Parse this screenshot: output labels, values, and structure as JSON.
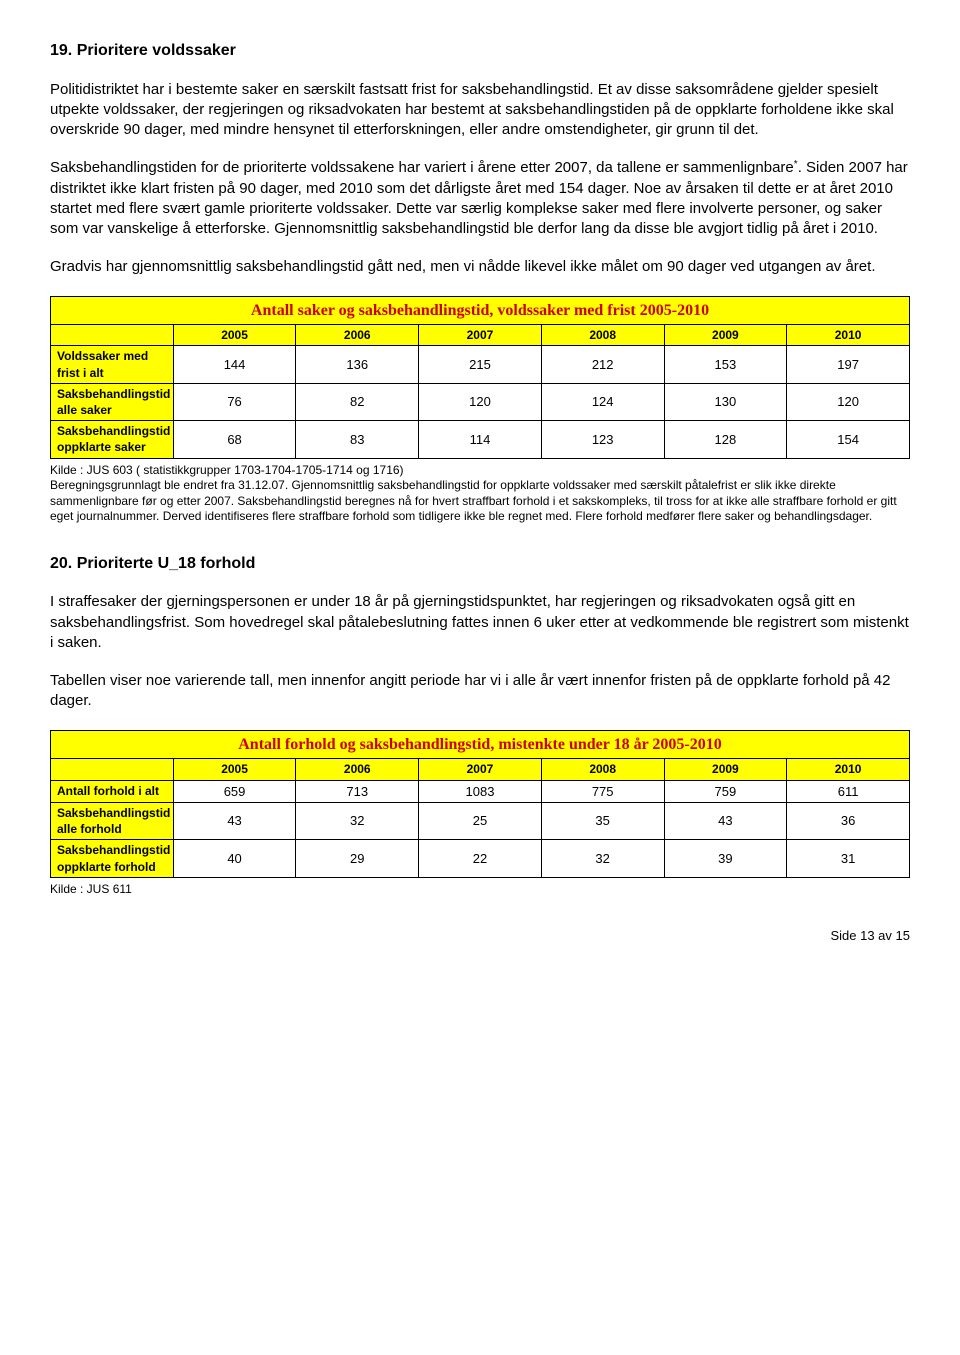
{
  "section19": {
    "heading": "19. Prioritere voldssaker",
    "p1": "Politidistriktet har i bestemte saker en særskilt fastsatt frist for saksbehandlingstid. Et av disse saksområdene gjelder spesielt utpekte voldssaker, der regjeringen og riksadvokaten har bestemt at saksbehandlingstiden på de oppklarte forholdene ikke skal overskride 90 dager, med mindre hensynet til etterforskningen, eller andre omstendigheter, gir grunn til det.",
    "p2a": "Saksbehandlingstiden for de prioriterte voldssakene har variert i årene etter 2007, da tallene er sammenlignbare",
    "p2b": ". Siden 2007 har distriktet ikke klart fristen på 90 dager, med 2010 som det dårligste året med 154 dager. Noe av årsaken til dette er at året 2010 startet med flere svært gamle prioriterte voldssaker. Dette var særlig komplekse saker med flere involverte personer, og saker som var vanskelige å etterforske. Gjennomsnittlig saksbehandlingstid ble derfor lang da disse ble avgjort tidlig på året i 2010.",
    "p3": "Gradvis har gjennomsnittlig saksbehandlingstid gått ned, men vi nådde likevel ikke målet om 90 dager ved utgangen av året."
  },
  "table1": {
    "title": "Antall saker og saksbehandlingstid, voldssaker med frist 2005-2010",
    "years": [
      "2005",
      "2006",
      "2007",
      "2008",
      "2009",
      "2010"
    ],
    "rows": [
      {
        "label": "Voldssaker med frist i alt",
        "values": [
          "144",
          "136",
          "215",
          "212",
          "153",
          "197"
        ]
      },
      {
        "label": "Saksbehandlingstid alle saker",
        "values": [
          "76",
          "82",
          "120",
          "124",
          "130",
          "120"
        ]
      },
      {
        "label": "Saksbehandlingstid oppklarte saker",
        "values": [
          "68",
          "83",
          "114",
          "123",
          "128",
          "154"
        ]
      }
    ],
    "note": "Kilde : JUS 603 ( statistikkgrupper 1703-1704-1705-1714 og 1716)\nBeregningsgrunnlagt ble endret fra 31.12.07. Gjennomsnittlig saksbehandlingstid for oppklarte voldssaker med særskilt påtalefrist er slik ikke direkte sammenlignbare før og etter 2007. Saksbehandlingstid beregnes nå for hvert straffbart forhold i et sakskompleks, til tross for at ikke alle straffbare forhold er gitt eget journalnummer. Derved identifiseres flere straffbare forhold som tidligere ikke ble regnet med. Flere forhold medfører flere saker og behandlingsdager."
  },
  "section20": {
    "heading": "20. Prioriterte U_18 forhold",
    "p1": "I straffesaker der gjerningspersonen er under 18 år på gjerningstidspunktet, har regjeringen og riksadvokaten også gitt en saksbehandlingsfrist. Som hovedregel skal påtalebeslutning fattes innen 6 uker etter at vedkommende ble registrert som mistenkt i saken.",
    "p2": "Tabellen viser noe varierende tall, men innenfor angitt periode har vi i alle år vært innenfor fristen på de oppklarte forhold på 42 dager."
  },
  "table2": {
    "title": "Antall forhold og saksbehandlingstid, mistenkte under 18 år 2005-2010",
    "years": [
      "2005",
      "2006",
      "2007",
      "2008",
      "2009",
      "2010"
    ],
    "rows": [
      {
        "label": "Antall forhold i alt",
        "values": [
          "659",
          "713",
          "1083",
          "775",
          "759",
          "611"
        ]
      },
      {
        "label": "Saksbehandlingstid alle forhold",
        "values": [
          "43",
          "32",
          "25",
          "35",
          "43",
          "36"
        ]
      },
      {
        "label": "Saksbehandlingstid oppklarte forhold",
        "values": [
          "40",
          "29",
          "22",
          "32",
          "39",
          "31"
        ]
      }
    ],
    "note": "Kilde : JUS 611"
  },
  "footer": "Side 13 av 15"
}
